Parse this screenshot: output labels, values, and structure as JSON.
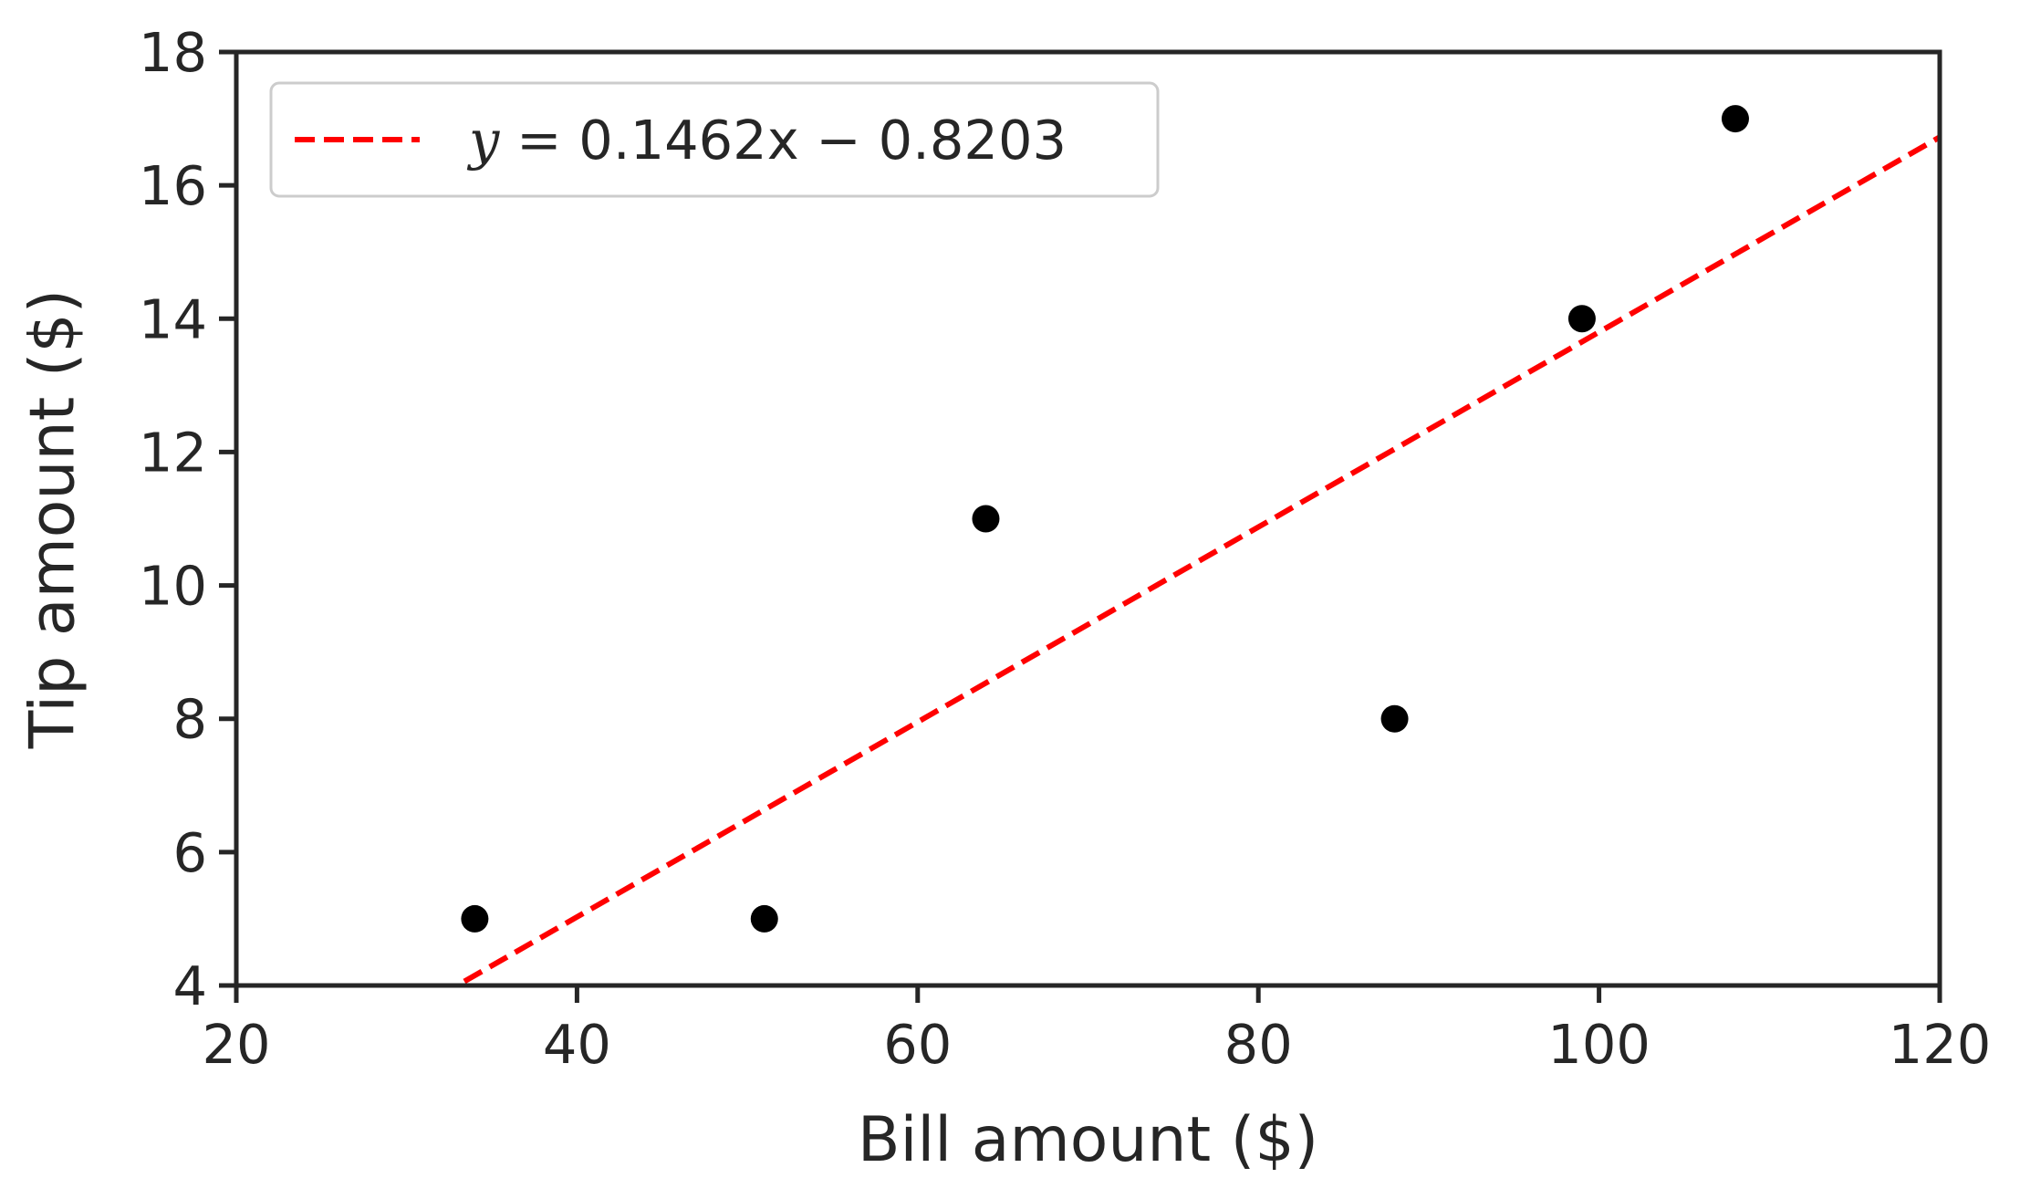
{
  "chart_data": {
    "type": "scatter",
    "title": "",
    "xlabel": "Bill amount ($)",
    "ylabel": "Tip amount ($)",
    "xlim": [
      20,
      120
    ],
    "ylim": [
      4,
      18
    ],
    "xticks": [
      20,
      40,
      60,
      80,
      100,
      120
    ],
    "yticks": [
      4,
      6,
      8,
      10,
      12,
      14,
      16,
      18
    ],
    "grid": false,
    "legend_position": "top-left",
    "points": [
      {
        "x": 34,
        "y": 5
      },
      {
        "x": 51,
        "y": 5
      },
      {
        "x": 64,
        "y": 11
      },
      {
        "x": 88,
        "y": 8
      },
      {
        "x": 99,
        "y": 14
      },
      {
        "x": 108,
        "y": 17
      }
    ],
    "point_color": "#000000",
    "fit_line": {
      "slope": 0.1462,
      "intercept": -0.8203,
      "label_prefix": "y = ",
      "label_body": "0.1462x − 0.8203",
      "color": "#ff0000",
      "style": "dashed"
    },
    "axis_color": "#262626"
  }
}
